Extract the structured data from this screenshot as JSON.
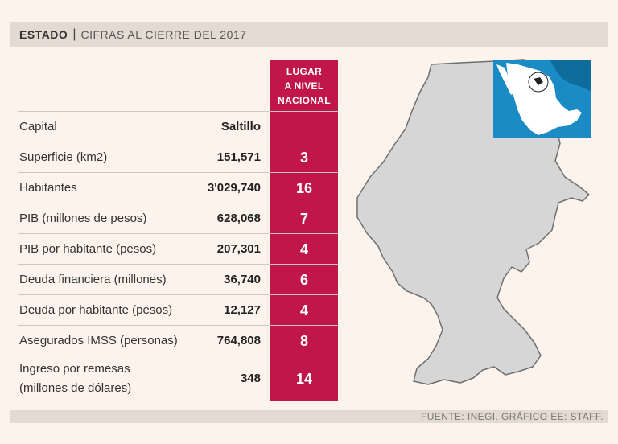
{
  "header": {
    "title": "ESTADO",
    "separator": "|",
    "subtitle": "CIFRAS AL CIERRE DEL 2017"
  },
  "rank_header": [
    "LUGAR",
    "A NIVEL",
    "NACIONAL"
  ],
  "rows": [
    {
      "label": "Capital",
      "value": "Saltillo",
      "rank": ""
    },
    {
      "label": "Superficie (km2)",
      "value": "151,571",
      "rank": "3"
    },
    {
      "label": "Habitantes",
      "value": "3'029,740",
      "rank": "16"
    },
    {
      "label": "PIB (millones de pesos)",
      "value": "628,068",
      "rank": "7"
    },
    {
      "label": "PIB por habitante (pesos)",
      "value": "207,301",
      "rank": "4"
    },
    {
      "label": "Deuda financiera (millones)",
      "value": "36,740",
      "rank": "6"
    },
    {
      "label": "Deuda por habitante (pesos)",
      "value": "12,127",
      "rank": "4"
    },
    {
      "label": "Asegurados IMSS (personas)",
      "value": "764,808",
      "rank": "8"
    },
    {
      "label": "Ingreso por remesas",
      "label2": "(millones de dólares)",
      "value": "348",
      "rank": "14"
    }
  ],
  "footer": {
    "source": "FUENTE: INEGI. GRÁFICO EE: STAFF."
  },
  "colors": {
    "background": "#fbf3ec",
    "bar": "#e3dbd1",
    "accent": "#c0164a",
    "map_fill": "#d6d6d6",
    "inset_bg": "#1a8bc4"
  },
  "icons": {
    "state_map": "coahuila-map-icon",
    "inset_map": "mexico-inset-map-icon"
  }
}
